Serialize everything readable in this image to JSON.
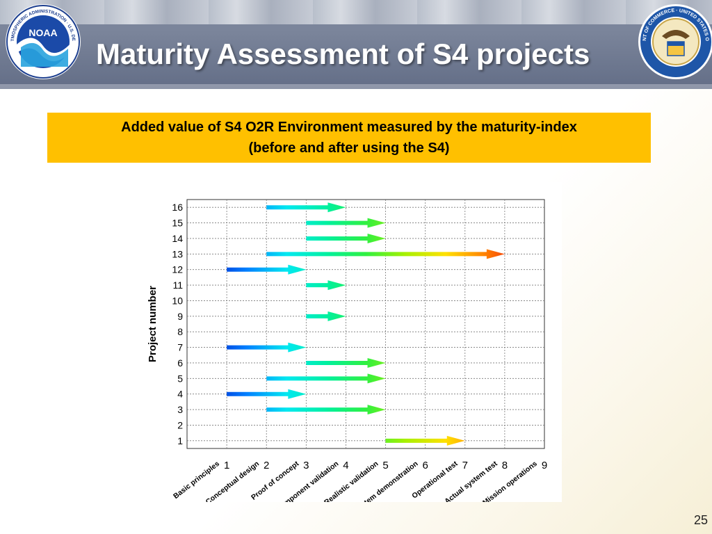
{
  "header": {
    "title": "Maturity Assessment of S4 projects",
    "left_logo": "noaa-logo",
    "right_logo": "department-of-commerce-seal",
    "noaa_logo_text": "NOAA",
    "noaa_logo_ring_text": "NATIONAL OCEANIC AND ATMOSPHERIC ADMINISTRATION · U.S. DEPARTMENT OF COMMERCE",
    "doc_seal_ring_text": "DEPARTMENT OF COMMERCE · UNITED STATES OF AMERICA"
  },
  "banner": {
    "line1": "Added value of S4 O2R Environment measured by the maturity-index",
    "line2": "(before and after using the S4)",
    "color": "#ffc000"
  },
  "page_number": "25",
  "chart_data": {
    "type": "arrow-range",
    "title": "",
    "xlabel": "",
    "ylabel": "Project number",
    "xlim": [
      0,
      9
    ],
    "ylim": [
      0.5,
      16.5
    ],
    "x_ticks": [
      "1",
      "2",
      "3",
      "4",
      "5",
      "6",
      "7",
      "8",
      "9"
    ],
    "x_categories": [
      "Basic principles",
      "Conceptual design",
      "Proof of concept",
      "Component validation",
      "Realistic validation",
      "System demonstration",
      "Operational test",
      "Actual system test",
      "Mission operations"
    ],
    "y_ticks": [
      "1",
      "2",
      "3",
      "4",
      "5",
      "6",
      "7",
      "8",
      "9",
      "10",
      "11",
      "12",
      "13",
      "14",
      "15",
      "16"
    ],
    "grid": true,
    "color_scale": "maturity level, blue (low) to red (high)",
    "projects": [
      {
        "project": 1,
        "before": 5,
        "after": 7
      },
      {
        "project": 3,
        "before": 2,
        "after": 5
      },
      {
        "project": 4,
        "before": 1,
        "after": 3
      },
      {
        "project": 5,
        "before": 2,
        "after": 5
      },
      {
        "project": 6,
        "before": 3,
        "after": 5
      },
      {
        "project": 7,
        "before": 1,
        "after": 3
      },
      {
        "project": 9,
        "before": 3,
        "after": 4
      },
      {
        "project": 11,
        "before": 3,
        "after": 4
      },
      {
        "project": 12,
        "before": 1,
        "after": 3
      },
      {
        "project": 13,
        "before": 2,
        "after": 8
      },
      {
        "project": 14,
        "before": 3,
        "after": 5
      },
      {
        "project": 15,
        "before": 3,
        "after": 5
      },
      {
        "project": 16,
        "before": 2,
        "after": 4
      }
    ]
  }
}
